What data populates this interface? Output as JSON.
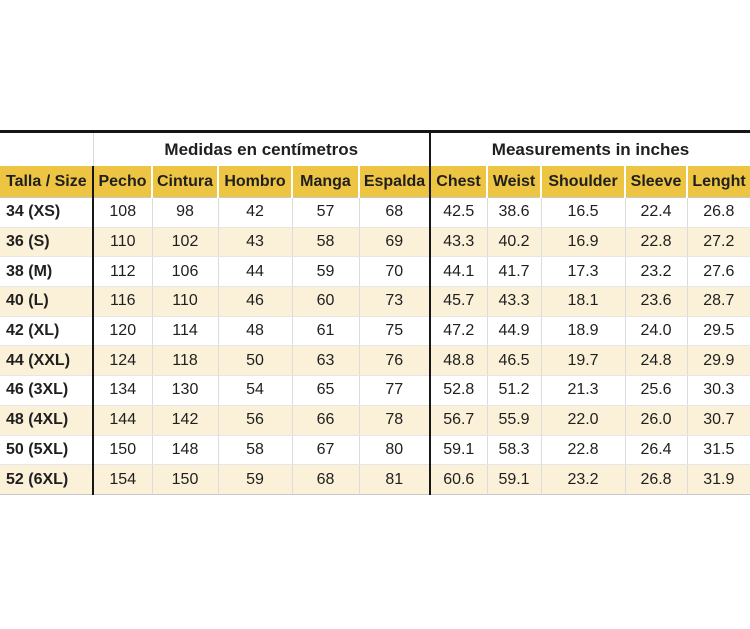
{
  "page": {
    "background_color": "#ffffff"
  },
  "colors": {
    "header_yellow": "#eec443",
    "row_cream": "#faf1d8",
    "row_white": "#ffffff",
    "grid_line_light": "#dcdcdc",
    "rule_black": "#161616",
    "text": "#1f1f1f"
  },
  "chart_data": {
    "type": "table",
    "title": "",
    "zebra_striping": true,
    "legend_position": "none",
    "column_groups": [
      {
        "label": "Medidas en centímetros",
        "columns_spanned": 5
      },
      {
        "label": "Measurements in inches",
        "columns_spanned": 5
      }
    ],
    "columns": [
      "Talla / Size",
      "Pecho",
      "Cintura",
      "Hombro",
      "Manga",
      "Espalda",
      "Chest",
      "Weist",
      "Shoulder",
      "Sleeve",
      "Lenght"
    ],
    "rows": [
      [
        "34 (XS)",
        "108",
        "98",
        "42",
        "57",
        "68",
        "42.5",
        "38.6",
        "16.5",
        "22.4",
        "26.8"
      ],
      [
        "36 (S)",
        "110",
        "102",
        "43",
        "58",
        "69",
        "43.3",
        "40.2",
        "16.9",
        "22.8",
        "27.2"
      ],
      [
        "38 (M)",
        "112",
        "106",
        "44",
        "59",
        "70",
        "44.1",
        "41.7",
        "17.3",
        "23.2",
        "27.6"
      ],
      [
        "40 (L)",
        "116",
        "110",
        "46",
        "60",
        "73",
        "45.7",
        "43.3",
        "18.1",
        "23.6",
        "28.7"
      ],
      [
        "42 (XL)",
        "120",
        "114",
        "48",
        "61",
        "75",
        "47.2",
        "44.9",
        "18.9",
        "24.0",
        "29.5"
      ],
      [
        "44 (XXL)",
        "124",
        "118",
        "50",
        "63",
        "76",
        "48.8",
        "46.5",
        "19.7",
        "24.8",
        "29.9"
      ],
      [
        "46 (3XL)",
        "134",
        "130",
        "54",
        "65",
        "77",
        "52.8",
        "51.2",
        "21.3",
        "25.6",
        "30.3"
      ],
      [
        "48 (4XL)",
        "144",
        "142",
        "56",
        "66",
        "78",
        "56.7",
        "55.9",
        "22.0",
        "26.0",
        "30.7"
      ],
      [
        "50 (5XL)",
        "150",
        "148",
        "58",
        "67",
        "80",
        "59.1",
        "58.3",
        "22.8",
        "26.4",
        "31.5"
      ],
      [
        "52 (6XL)",
        "154",
        "150",
        "59",
        "68",
        "81",
        "60.6",
        "59.1",
        "23.2",
        "26.8",
        "31.9"
      ]
    ]
  }
}
